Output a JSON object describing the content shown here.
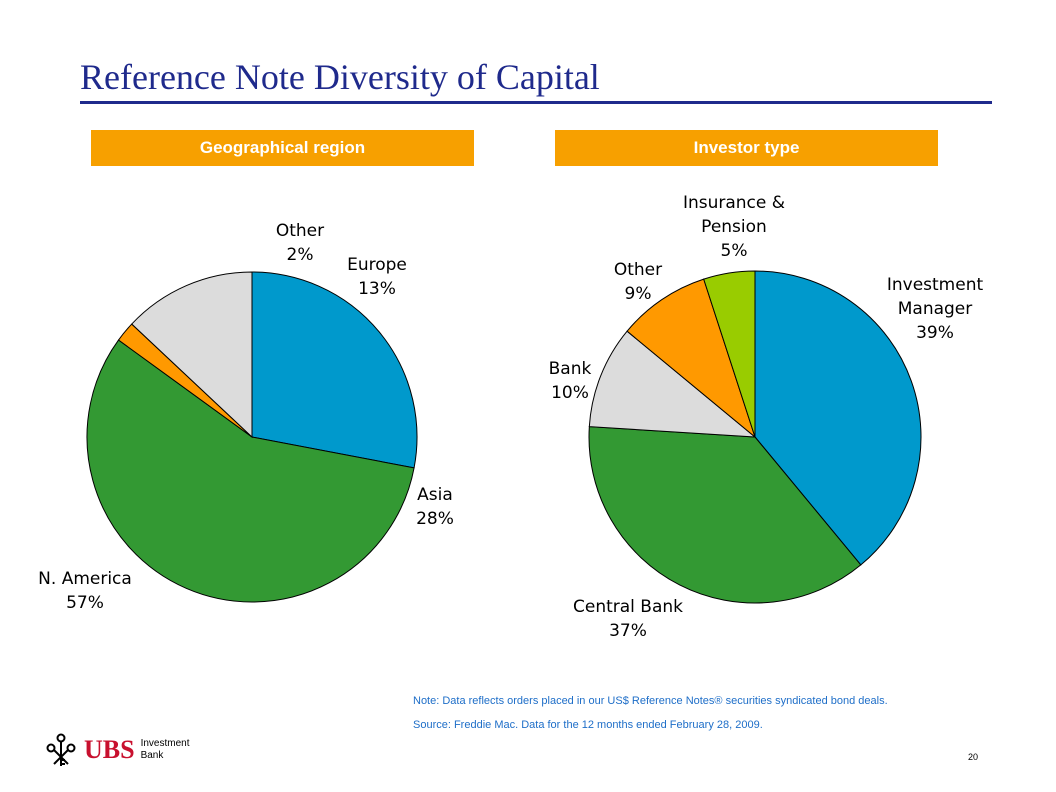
{
  "title": "Reference Note Diversity of Capital",
  "colors": {
    "title": "#1f2a8c",
    "header_bg": "#f7a000",
    "note_text": "#1e6ec8",
    "green": "#339933",
    "blue": "#0099cc",
    "grey": "#dcdcdc",
    "orange": "#ff9900",
    "lime": "#99cc00",
    "brand_red": "#c8102e"
  },
  "chart_data": [
    {
      "type": "pie",
      "title": "Geographical region",
      "slices": [
        {
          "label": "Asia",
          "value": 28,
          "value_label": "28%",
          "color": "#0099cc"
        },
        {
          "label": "N. America",
          "value": 57,
          "value_label": "57%",
          "color": "#339933"
        },
        {
          "label": "Other",
          "value": 2,
          "value_label": "2%",
          "color": "#ff9900"
        },
        {
          "label": "Europe",
          "value": 13,
          "value_label": "13%",
          "color": "#dcdcdc"
        }
      ]
    },
    {
      "type": "pie",
      "title": "Investor type",
      "slices": [
        {
          "label": "Investment Manager",
          "value": 39,
          "value_label": "39%",
          "color": "#0099cc"
        },
        {
          "label": "Central Bank",
          "value": 37,
          "value_label": "37%",
          "color": "#339933"
        },
        {
          "label": "Bank",
          "value": 10,
          "value_label": "10%",
          "color": "#dcdcdc"
        },
        {
          "label": "Other",
          "value": 9,
          "value_label": "9%",
          "color": "#ff9900"
        },
        {
          "label": "Insurance & Pension",
          "value": 5,
          "value_label": "5%",
          "color": "#99cc00"
        }
      ]
    }
  ],
  "notes": {
    "note": "Note: Data reflects orders placed in our US$ Reference Notes® securities syndicated bond deals.",
    "source": "Source: Freddie Mac. Data for the 12 months ended February 28, 2009."
  },
  "logo": {
    "brand": "UBS",
    "division_line1": "Investment",
    "division_line2": "Bank"
  },
  "page_number": "20"
}
